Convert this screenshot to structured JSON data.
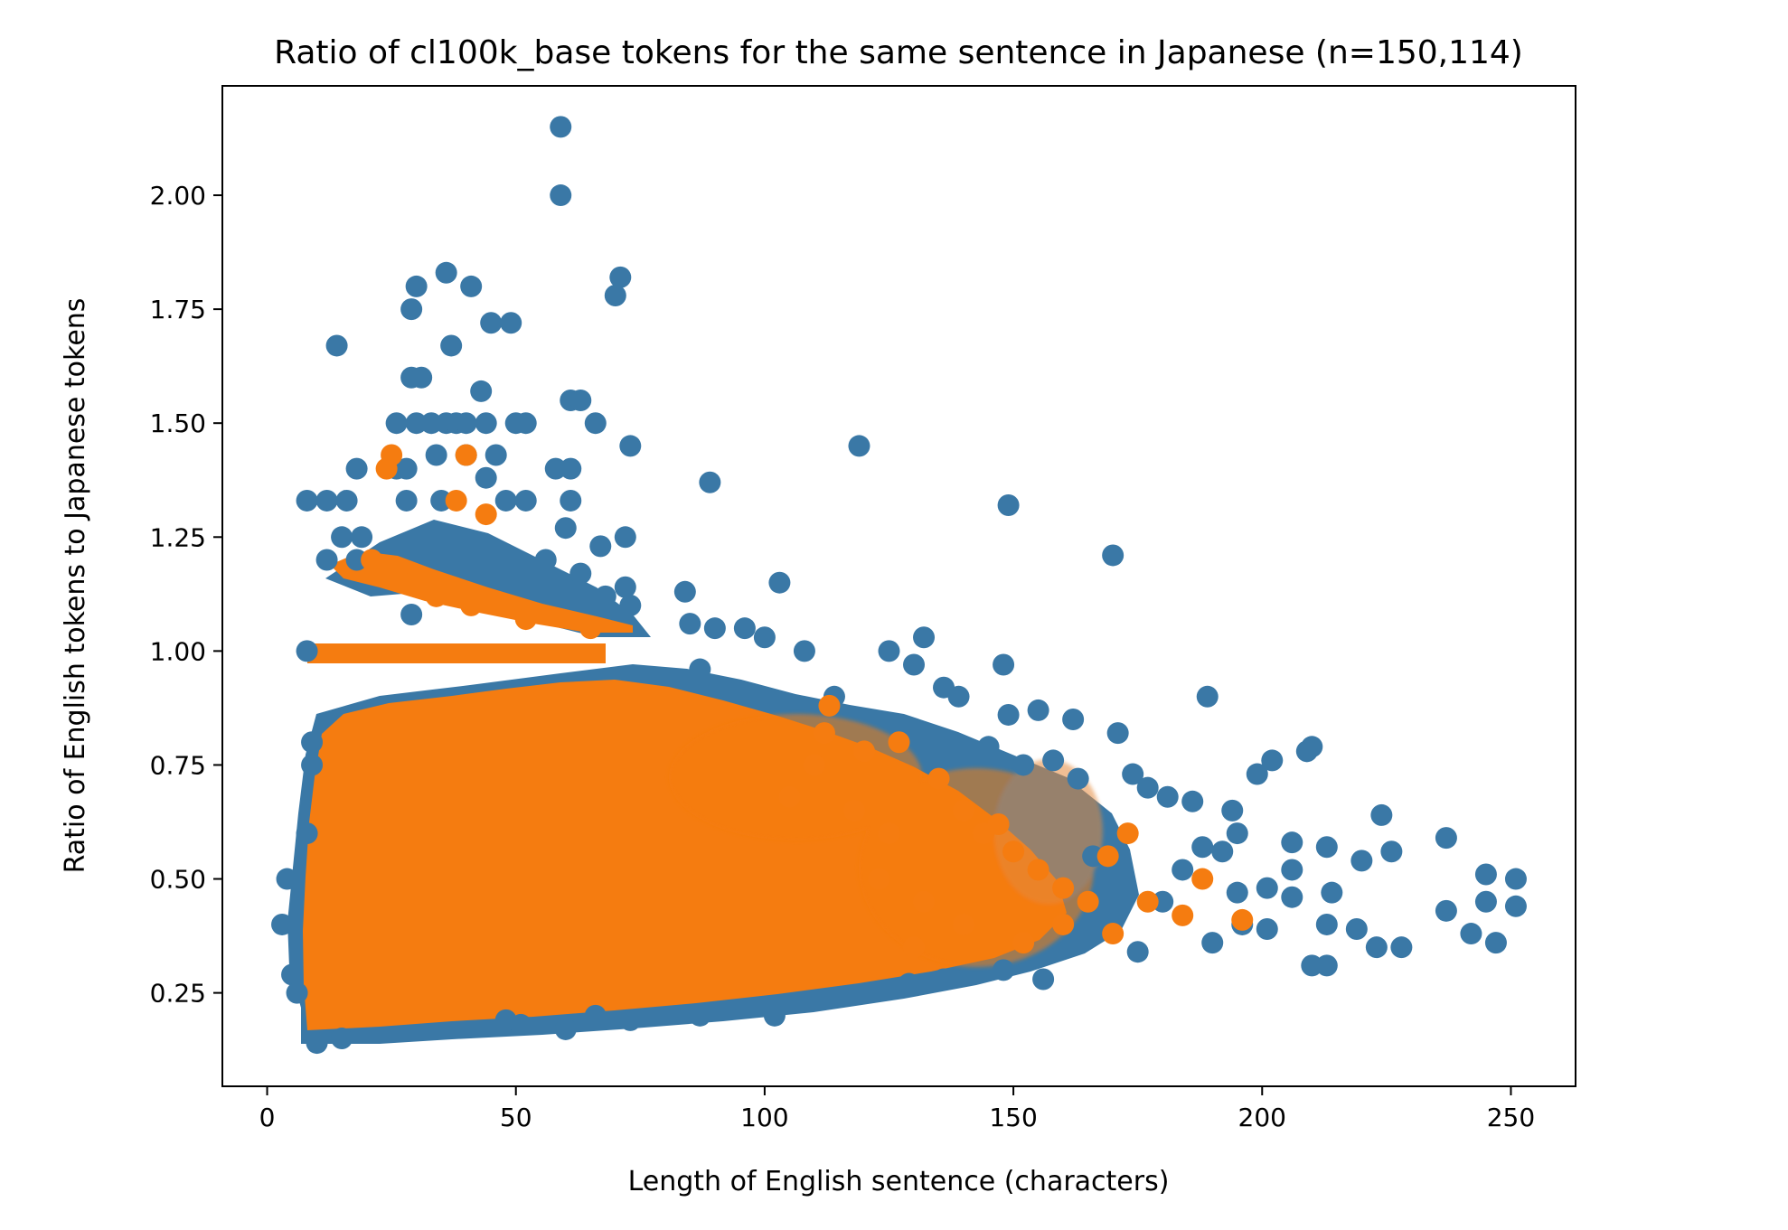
{
  "chart_data": {
    "type": "scatter",
    "title": "Ratio of cl100k_base tokens for the same sentence in Japanese (n=150,114)",
    "xlabel": "Length of English sentence (characters)",
    "ylabel": "Ratio of English tokens to Japanese tokens",
    "xlim": [
      -9,
      263
    ],
    "ylim": [
      0.045,
      2.24
    ],
    "xticks": [
      0,
      50,
      100,
      150,
      200,
      250
    ],
    "yticks": [
      0.25,
      0.5,
      0.75,
      1.0,
      1.25,
      1.5,
      1.75,
      2.0
    ],
    "ytick_labels": [
      "0.25",
      "0.50",
      "0.75",
      "1.00",
      "1.25",
      "1.50",
      "1.75",
      "2.00"
    ],
    "grid": false,
    "legend": "none",
    "n": 150114,
    "series": [
      {
        "color": "#3a78a6",
        "points": [
          [
            59,
            2.15
          ],
          [
            59,
            2.0
          ],
          [
            36,
            1.83
          ],
          [
            30,
            1.8
          ],
          [
            41,
            1.8
          ],
          [
            71,
            1.82
          ],
          [
            70,
            1.78
          ],
          [
            29,
            1.75
          ],
          [
            14,
            1.67
          ],
          [
            37,
            1.67
          ],
          [
            45,
            1.72
          ],
          [
            49,
            1.72
          ],
          [
            29,
            1.6
          ],
          [
            31,
            1.6
          ],
          [
            43,
            1.57
          ],
          [
            61,
            1.55
          ],
          [
            63,
            1.55
          ],
          [
            66,
            1.5
          ],
          [
            26,
            1.5
          ],
          [
            30,
            1.5
          ],
          [
            33,
            1.5
          ],
          [
            36,
            1.5
          ],
          [
            38,
            1.5
          ],
          [
            40,
            1.5
          ],
          [
            44,
            1.5
          ],
          [
            50,
            1.5
          ],
          [
            52,
            1.5
          ],
          [
            73,
            1.45
          ],
          [
            119,
            1.45
          ],
          [
            34,
            1.43
          ],
          [
            40,
            1.43
          ],
          [
            46,
            1.43
          ],
          [
            18,
            1.4
          ],
          [
            26,
            1.4
          ],
          [
            28,
            1.4
          ],
          [
            58,
            1.4
          ],
          [
            61,
            1.4
          ],
          [
            89,
            1.37
          ],
          [
            44,
            1.38
          ],
          [
            8,
            1.33
          ],
          [
            12,
            1.33
          ],
          [
            16,
            1.33
          ],
          [
            28,
            1.33
          ],
          [
            35,
            1.33
          ],
          [
            48,
            1.33
          ],
          [
            52,
            1.33
          ],
          [
            61,
            1.33
          ],
          [
            149,
            1.32
          ],
          [
            60,
            1.27
          ],
          [
            67,
            1.23
          ],
          [
            72,
            1.25
          ],
          [
            170,
            1.21
          ],
          [
            15,
            1.25
          ],
          [
            19,
            1.25
          ],
          [
            12,
            1.2
          ],
          [
            18,
            1.2
          ],
          [
            56,
            1.2
          ],
          [
            63,
            1.17
          ],
          [
            103,
            1.15
          ],
          [
            84,
            1.13
          ],
          [
            72,
            1.14
          ],
          [
            73,
            1.1
          ],
          [
            68,
            1.12
          ],
          [
            29,
            1.08
          ],
          [
            85,
            1.06
          ],
          [
            90,
            1.05
          ],
          [
            96,
            1.05
          ],
          [
            100,
            1.03
          ],
          [
            132,
            1.03
          ],
          [
            8,
            1.0
          ],
          [
            125,
            1.0
          ],
          [
            108,
            1.0
          ],
          [
            130,
            0.97
          ],
          [
            148,
            0.97
          ],
          [
            87,
            0.96
          ],
          [
            114,
            0.9
          ],
          [
            136,
            0.92
          ],
          [
            139,
            0.9
          ],
          [
            189,
            0.9
          ],
          [
            149,
            0.86
          ],
          [
            155,
            0.87
          ],
          [
            162,
            0.85
          ],
          [
            171,
            0.82
          ],
          [
            145,
            0.79
          ],
          [
            152,
            0.75
          ],
          [
            158,
            0.76
          ],
          [
            163,
            0.72
          ],
          [
            174,
            0.73
          ],
          [
            177,
            0.7
          ],
          [
            181,
            0.68
          ],
          [
            186,
            0.67
          ],
          [
            194,
            0.65
          ],
          [
            199,
            0.73
          ],
          [
            202,
            0.76
          ],
          [
            209,
            0.78
          ],
          [
            210,
            0.79
          ],
          [
            206,
            0.58
          ],
          [
            195,
            0.6
          ],
          [
            188,
            0.57
          ],
          [
            192,
            0.56
          ],
          [
            213,
            0.57
          ],
          [
            220,
            0.54
          ],
          [
            224,
            0.64
          ],
          [
            226,
            0.56
          ],
          [
            237,
            0.59
          ],
          [
            251,
            0.5
          ],
          [
            245,
            0.51
          ],
          [
            201,
            0.48
          ],
          [
            214,
            0.47
          ],
          [
            206,
            0.46
          ],
          [
            245,
            0.45
          ],
          [
            251,
            0.44
          ],
          [
            237,
            0.43
          ],
          [
            213,
            0.4
          ],
          [
            219,
            0.39
          ],
          [
            196,
            0.4
          ],
          [
            201,
            0.39
          ],
          [
            242,
            0.38
          ],
          [
            247,
            0.36
          ],
          [
            223,
            0.35
          ],
          [
            228,
            0.35
          ],
          [
            210,
            0.31
          ],
          [
            213,
            0.31
          ],
          [
            190,
            0.36
          ],
          [
            175,
            0.34
          ],
          [
            156,
            0.28
          ],
          [
            148,
            0.3
          ],
          [
            129,
            0.27
          ],
          [
            136,
            0.28
          ],
          [
            60,
            0.17
          ],
          [
            10,
            0.14
          ],
          [
            15,
            0.15
          ],
          [
            48,
            0.19
          ],
          [
            51,
            0.18
          ],
          [
            66,
            0.2
          ],
          [
            73,
            0.19
          ],
          [
            87,
            0.2
          ],
          [
            102,
            0.2
          ],
          [
            101,
            0.22
          ],
          [
            4,
            0.5
          ],
          [
            3,
            0.4
          ],
          [
            5,
            0.29
          ],
          [
            6,
            0.25
          ],
          [
            8,
            0.6
          ],
          [
            9,
            0.75
          ],
          [
            9,
            0.8
          ],
          [
            206,
            0.52
          ],
          [
            184,
            0.52
          ],
          [
            166,
            0.55
          ],
          [
            172,
            0.5
          ],
          [
            195,
            0.47
          ],
          [
            180,
            0.45
          ]
        ]
      },
      {
        "color": "#f57c10",
        "points": [
          [
            24,
            1.4
          ],
          [
            25,
            1.43
          ],
          [
            21,
            1.2
          ],
          [
            27,
            1.15
          ],
          [
            34,
            1.12
          ],
          [
            41,
            1.1
          ],
          [
            52,
            1.07
          ],
          [
            65,
            1.05
          ],
          [
            40,
            1.43
          ],
          [
            38,
            1.33
          ],
          [
            44,
            1.3
          ],
          [
            113,
            0.88
          ],
          [
            112,
            0.82
          ],
          [
            127,
            0.8
          ],
          [
            120,
            0.78
          ],
          [
            135,
            0.72
          ],
          [
            140,
            0.65
          ],
          [
            144,
            0.6
          ],
          [
            150,
            0.56
          ],
          [
            147,
            0.62
          ],
          [
            155,
            0.52
          ],
          [
            160,
            0.48
          ],
          [
            165,
            0.45
          ],
          [
            169,
            0.55
          ],
          [
            173,
            0.6
          ],
          [
            177,
            0.45
          ],
          [
            184,
            0.42
          ],
          [
            188,
            0.5
          ],
          [
            196,
            0.41
          ],
          [
            170,
            0.38
          ],
          [
            152,
            0.36
          ],
          [
            140,
            0.4
          ],
          [
            130,
            0.35
          ],
          [
            160,
            0.4
          ],
          [
            125,
            0.6
          ],
          [
            118,
            0.65
          ],
          [
            110,
            0.75
          ],
          [
            105,
            0.68
          ],
          [
            123,
            0.5
          ],
          [
            132,
            0.45
          ]
        ]
      }
    ]
  }
}
